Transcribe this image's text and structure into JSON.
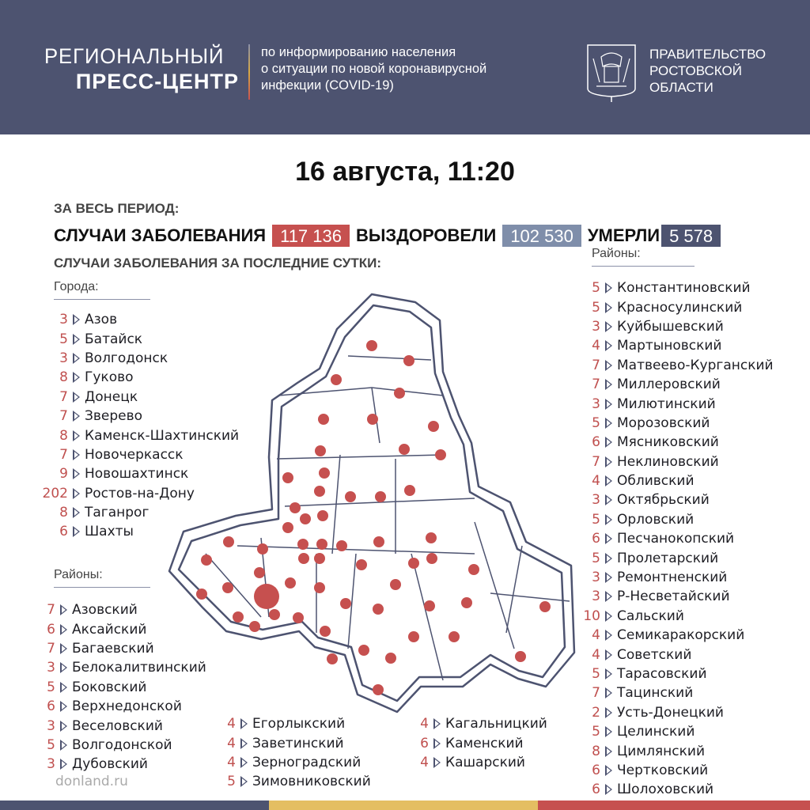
{
  "header": {
    "title_line1": "РЕГИОНАЛЬНЫЙ",
    "title_line2": "ПРЕСС-ЦЕНТР",
    "description": [
      "по информированию населения",
      "о ситуации по новой коронавирусной",
      "инфекции (COVID-19)"
    ],
    "government": [
      "ПРАВИТЕЛЬСТВО",
      "РОСТОВСКОЙ",
      "ОБЛАСТИ"
    ]
  },
  "date": "16 августа, 11:20",
  "period_label": "ЗА ВЕСЬ ПЕРИОД:",
  "stats": {
    "cases_label": "СЛУЧАИ ЗАБОЛЕВАНИЯ",
    "cases": "117 136",
    "recovered_label": "ВЫЗДОРОВЕЛИ",
    "recovered": "102 530",
    "deaths_label": "УМЕРЛИ",
    "deaths": "5 578"
  },
  "colors": {
    "header": "#4d5370",
    "cases": "#c6504f",
    "recovered": "#7f8eaa",
    "deaths": "#4d5370",
    "accent_yellow": "#e4be62"
  },
  "daily_label": "СЛУЧАИ ЗАБОЛЕВАНИЯ ЗА ПОСЛЕДНИЕ СУТКИ:",
  "cities_label": "Города:",
  "districts_label": "Районы:",
  "cities": [
    {
      "n": "3",
      "name": "Азов"
    },
    {
      "n": "5",
      "name": "Батайск"
    },
    {
      "n": "3",
      "name": "Волгодонск"
    },
    {
      "n": "8",
      "name": "Гуково"
    },
    {
      "n": "7",
      "name": "Донецк"
    },
    {
      "n": "7",
      "name": "Зверево"
    },
    {
      "n": "8",
      "name": "Каменск-Шахтинский"
    },
    {
      "n": "7",
      "name": "Новочеркасск"
    },
    {
      "n": "9",
      "name": "Новошахтинск"
    },
    {
      "n": "202",
      "name": "Ростов-на-Дону"
    },
    {
      "n": "8",
      "name": "Таганрог"
    },
    {
      "n": "6",
      "name": "Шахты"
    }
  ],
  "districts_left": [
    {
      "n": "7",
      "name": "Азовский"
    },
    {
      "n": "6",
      "name": "Аксайский"
    },
    {
      "n": "7",
      "name": "Багаевский"
    },
    {
      "n": "3",
      "name": "Белокалитвинский"
    },
    {
      "n": "5",
      "name": "Боковский"
    },
    {
      "n": "6",
      "name": "Верхнедонской"
    },
    {
      "n": "3",
      "name": "Веселовский"
    },
    {
      "n": "5",
      "name": "Волгодонской"
    },
    {
      "n": "3",
      "name": "Дубовский"
    }
  ],
  "districts_mid": [
    {
      "n": "4",
      "name": "Егорлыкский"
    },
    {
      "n": "4",
      "name": "Заветинский"
    },
    {
      "n": "4",
      "name": "Зерноградский"
    },
    {
      "n": "5",
      "name": "Зимовниковский"
    }
  ],
  "districts_mid2": [
    {
      "n": "4",
      "name": "Кагальницкий"
    },
    {
      "n": "6",
      "name": "Каменский"
    },
    {
      "n": "4",
      "name": "Кашарский"
    }
  ],
  "districts_right": [
    {
      "n": "5",
      "name": "Константиновский"
    },
    {
      "n": "5",
      "name": "Красносулинский"
    },
    {
      "n": "3",
      "name": "Куйбышевский"
    },
    {
      "n": "4",
      "name": "Мартыновский"
    },
    {
      "n": "7",
      "name": "Матвеево-Курганский"
    },
    {
      "n": "7",
      "name": "Миллеровский"
    },
    {
      "n": "3",
      "name": "Милютинский"
    },
    {
      "n": "5",
      "name": "Морозовский"
    },
    {
      "n": "6",
      "name": "Мясниковский"
    },
    {
      "n": "7",
      "name": "Неклиновский"
    },
    {
      "n": "4",
      "name": "Обливский"
    },
    {
      "n": "3",
      "name": "Октябрьский"
    },
    {
      "n": "5",
      "name": "Орловский"
    },
    {
      "n": "6",
      "name": "Песчанокопский"
    },
    {
      "n": "5",
      "name": "Пролетарский"
    },
    {
      "n": "3",
      "name": "Ремонтненский"
    },
    {
      "n": "3",
      "name": "Р-Несветайский"
    },
    {
      "n": "10",
      "name": "Сальский"
    },
    {
      "n": "4",
      "name": "Семикаракорский"
    },
    {
      "n": "4",
      "name": "Советский"
    },
    {
      "n": "5",
      "name": "Тарасовский"
    },
    {
      "n": "7",
      "name": "Тацинский"
    },
    {
      "n": "2",
      "name": "Усть-Донецкий"
    },
    {
      "n": "5",
      "name": "Целинский"
    },
    {
      "n": "8",
      "name": "Цимлянский"
    },
    {
      "n": "6",
      "name": "Чертковский"
    },
    {
      "n": "6",
      "name": "Шолоховский"
    }
  ],
  "site": "donland.ru"
}
